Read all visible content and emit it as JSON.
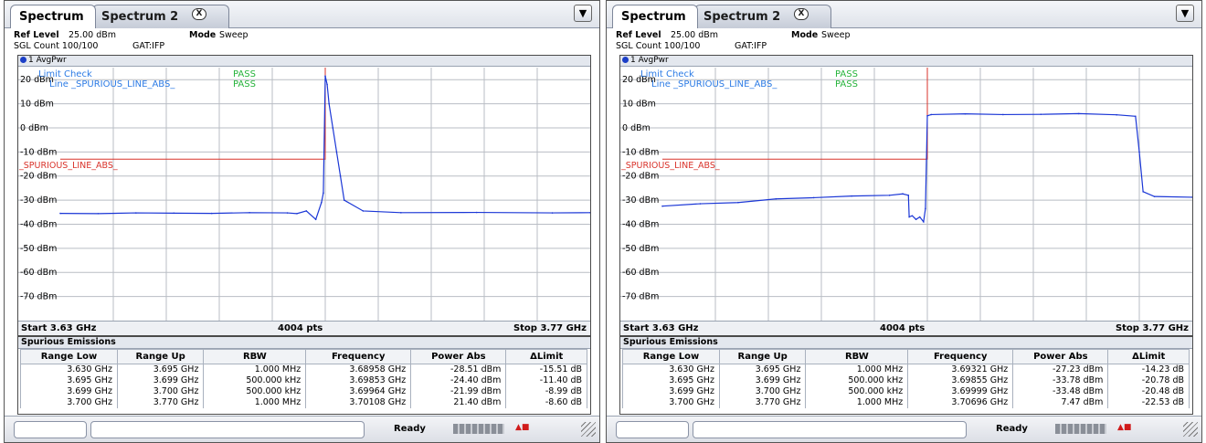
{
  "panels": [
    {
      "tabs": {
        "tab1": "Spectrum",
        "tab2": "Spectrum 2",
        "close_icon": "X"
      },
      "header": {
        "ref_level_label": "Ref Level",
        "ref_level_value": "25.00 dBm",
        "mode_label": "Mode",
        "mode_value": "Sweep",
        "sgl_count": "SGL Count 100/100",
        "gat": "GAT:IFP"
      },
      "trace_label": "1 AvgPwr",
      "limit_check": {
        "title": "Limit Check",
        "title_result": "PASS",
        "line_label": "Line _SPURIOUS_LINE_ABS_",
        "line_result": "PASS"
      },
      "limit_line_name": "_SPURIOUS_LINE_ABS_",
      "footer": {
        "start": "Start 3.63 GHz",
        "points": "4004 pts",
        "stop": "Stop 3.77 GHz"
      },
      "spurious": {
        "title": "Spurious Emissions",
        "columns": [
          "Range Low",
          "Range Up",
          "RBW",
          "Frequency",
          "Power Abs",
          "ΔLimit"
        ],
        "rows": [
          [
            "3.630 GHz",
            "3.695 GHz",
            "1.000 MHz",
            "3.68958 GHz",
            "-28.51 dBm",
            "-15.51 dB"
          ],
          [
            "3.695 GHz",
            "3.699 GHz",
            "500.000 kHz",
            "3.69853 GHz",
            "-24.40 dBm",
            "-11.40 dB"
          ],
          [
            "3.699 GHz",
            "3.700 GHz",
            "500.000 kHz",
            "3.69964 GHz",
            "-21.99 dBm",
            "-8.99 dB"
          ],
          [
            "3.700 GHz",
            "3.770 GHz",
            "1.000 MHz",
            "3.70108 GHz",
            "21.40 dBm",
            "-8.60 dB"
          ]
        ]
      },
      "status": "Ready",
      "chart_data": {
        "type": "line",
        "xlim": [
          3.63,
          3.77
        ],
        "ylim": [
          -80,
          25
        ],
        "ytick_labels": [
          "20 dBm",
          "10 dBm",
          "0 dBm",
          "-10 dBm",
          "-20 dBm",
          "-30 dBm",
          "-40 dBm",
          "-50 dBm",
          "-60 dBm",
          "-70 dBm"
        ],
        "grid": true,
        "limit_line": {
          "x": [
            3.63,
            3.7,
            3.7
          ],
          "y": [
            -13,
            -13,
            25
          ]
        },
        "series": [
          {
            "x": [
              3.63,
              3.64,
              3.65,
              3.66,
              3.67,
              3.68,
              3.69,
              3.6925,
              3.695,
              3.6975,
              3.699,
              3.6995,
              3.7,
              3.7005,
              3.701,
              3.702,
              3.703,
              3.704,
              3.705,
              3.71,
              3.72,
              3.74,
              3.76,
              3.77
            ],
            "y": [
              -35.5,
              -35.6,
              -35.3,
              -35.4,
              -35.5,
              -35.2,
              -35.3,
              -35.6,
              -34.5,
              -38,
              -31,
              -27,
              21.5,
              18,
              10,
              0,
              -10,
              -20,
              -30,
              -34.5,
              -35.2,
              -35.1,
              -35.3,
              -35.2
            ]
          }
        ]
      }
    },
    {
      "tabs": {
        "tab1": "Spectrum",
        "tab2": "Spectrum 2",
        "close_icon": "X"
      },
      "header": {
        "ref_level_label": "Ref Level",
        "ref_level_value": "25.00 dBm",
        "mode_label": "Mode",
        "mode_value": "Sweep",
        "sgl_count": "SGL Count 100/100",
        "gat": "GAT:IFP"
      },
      "trace_label": "1 AvgPwr",
      "limit_check": {
        "title": "Limit Check",
        "title_result": "PASS",
        "line_label": "Line _SPURIOUS_LINE_ABS_",
        "line_result": "PASS"
      },
      "limit_line_name": "_SPURIOUS_LINE_ABS_",
      "footer": {
        "start": "Start 3.63 GHz",
        "points": "4004 pts",
        "stop": "Stop 3.77 GHz"
      },
      "spurious": {
        "title": "Spurious Emissions",
        "columns": [
          "Range Low",
          "Range Up",
          "RBW",
          "Frequency",
          "Power Abs",
          "ΔLimit"
        ],
        "rows": [
          [
            "3.630 GHz",
            "3.695 GHz",
            "1.000 MHz",
            "3.69321 GHz",
            "-27.23 dBm",
            "-14.23 dB"
          ],
          [
            "3.695 GHz",
            "3.699 GHz",
            "500.000 kHz",
            "3.69855 GHz",
            "-33.78 dBm",
            "-20.78 dB"
          ],
          [
            "3.699 GHz",
            "3.700 GHz",
            "500.000 kHz",
            "3.69999 GHz",
            "-33.48 dBm",
            "-20.48 dB"
          ],
          [
            "3.700 GHz",
            "3.770 GHz",
            "1.000 MHz",
            "3.70696 GHz",
            "7.47 dBm",
            "-22.53 dB"
          ]
        ]
      },
      "status": "Ready",
      "chart_data": {
        "type": "line",
        "xlim": [
          3.63,
          3.77
        ],
        "ylim": [
          -80,
          25
        ],
        "ytick_labels": [
          "20 dBm",
          "10 dBm",
          "0 dBm",
          "-10 dBm",
          "-20 dBm",
          "-30 dBm",
          "-40 dBm",
          "-50 dBm",
          "-60 dBm",
          "-70 dBm"
        ],
        "grid": true,
        "limit_line": {
          "x": [
            3.63,
            3.7,
            3.7
          ],
          "y": [
            -13,
            -13,
            25
          ]
        },
        "series": [
          {
            "x": [
              3.63,
              3.64,
              3.65,
              3.66,
              3.67,
              3.68,
              3.69,
              3.6935,
              3.695,
              3.6952,
              3.696,
              3.697,
              3.698,
              3.699,
              3.6995,
              3.7,
              3.701,
              3.71,
              3.72,
              3.73,
              3.74,
              3.75,
              3.755,
              3.756,
              3.757,
              3.76,
              3.77
            ],
            "y": [
              -32.5,
              -31.5,
              -31,
              -29.5,
              -29,
              -28.3,
              -28,
              -27.4,
              -28,
              -37,
              -36.5,
              -38,
              -37,
              -39,
              -33.5,
              5,
              5.5,
              5.8,
              5.5,
              5.6,
              5.9,
              5.4,
              4.8,
              -10,
              -26.5,
              -28.5,
              -28.8
            ]
          }
        ]
      }
    }
  ]
}
